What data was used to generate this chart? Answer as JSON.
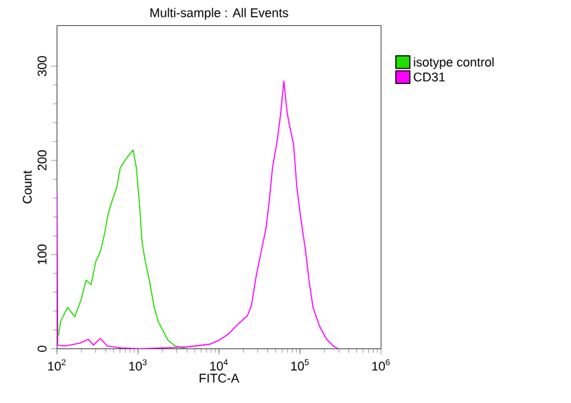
{
  "chart_data": {
    "type": "line",
    "title": "Multi-sample : All Events",
    "xlabel": "FITC-A",
    "ylabel": "Count",
    "log": "x",
    "xlim": [
      100,
      1000000
    ],
    "ylim": [
      0,
      343
    ],
    "xticks": [
      {
        "value": 100,
        "label": "10$^{2}$"
      },
      {
        "value": 1000,
        "label": "10$^{3}$"
      },
      {
        "value": 10000,
        "label": "10$^{4}$"
      },
      {
        "value": 100000,
        "label": "10$^{5}$"
      },
      {
        "value": 1000000,
        "label": "10$^{6}$"
      }
    ],
    "yticks": [
      0,
      100,
      200,
      300
    ],
    "grid": false,
    "legend": "right",
    "marker": "none",
    "line_style": "solid",
    "series": [
      {
        "name": "isotype control",
        "color": "#22dd00",
        "x": [
          104,
          111,
          135,
          166,
          200,
          229,
          263,
          302,
          343,
          389,
          427,
          479,
          550,
          603,
          692,
          794,
          871,
          955,
          1047,
          1122,
          1230,
          1380,
          1585,
          1778,
          2042,
          2344,
          2884,
          3981
        ],
        "values": [
          14,
          29,
          44,
          34,
          53,
          73,
          68,
          93,
          103,
          123,
          143,
          157,
          172,
          192,
          200,
          207,
          211,
          192,
          152,
          113,
          93,
          73,
          44,
          29,
          19,
          9,
          3,
          0
        ]
      },
      {
        "name": "CD31",
        "color": "#ff00ff",
        "x": [
          100,
          102,
          126,
          191,
          245,
          282,
          343,
          417,
          617,
          1047,
          2042,
          3981,
          7762,
          10000,
          13183,
          16982,
          22387,
          25119,
          28840,
          33113,
          38019,
          41687,
          45709,
          52481,
          57544,
          63096,
          69183,
          74131,
          83176,
          91201,
          102329,
          117490,
          128825,
          144544,
          173780,
          213796,
          257040,
          295121
        ],
        "values": [
          167,
          4,
          3,
          6,
          10,
          4,
          11,
          3,
          1,
          0,
          1,
          2,
          5,
          9,
          16,
          26,
          35,
          46,
          78,
          103,
          128,
          157,
          192,
          222,
          249,
          284,
          251,
          237,
          217,
          172,
          138,
          103,
          73,
          44,
          24,
          10,
          3,
          0
        ]
      }
    ]
  }
}
